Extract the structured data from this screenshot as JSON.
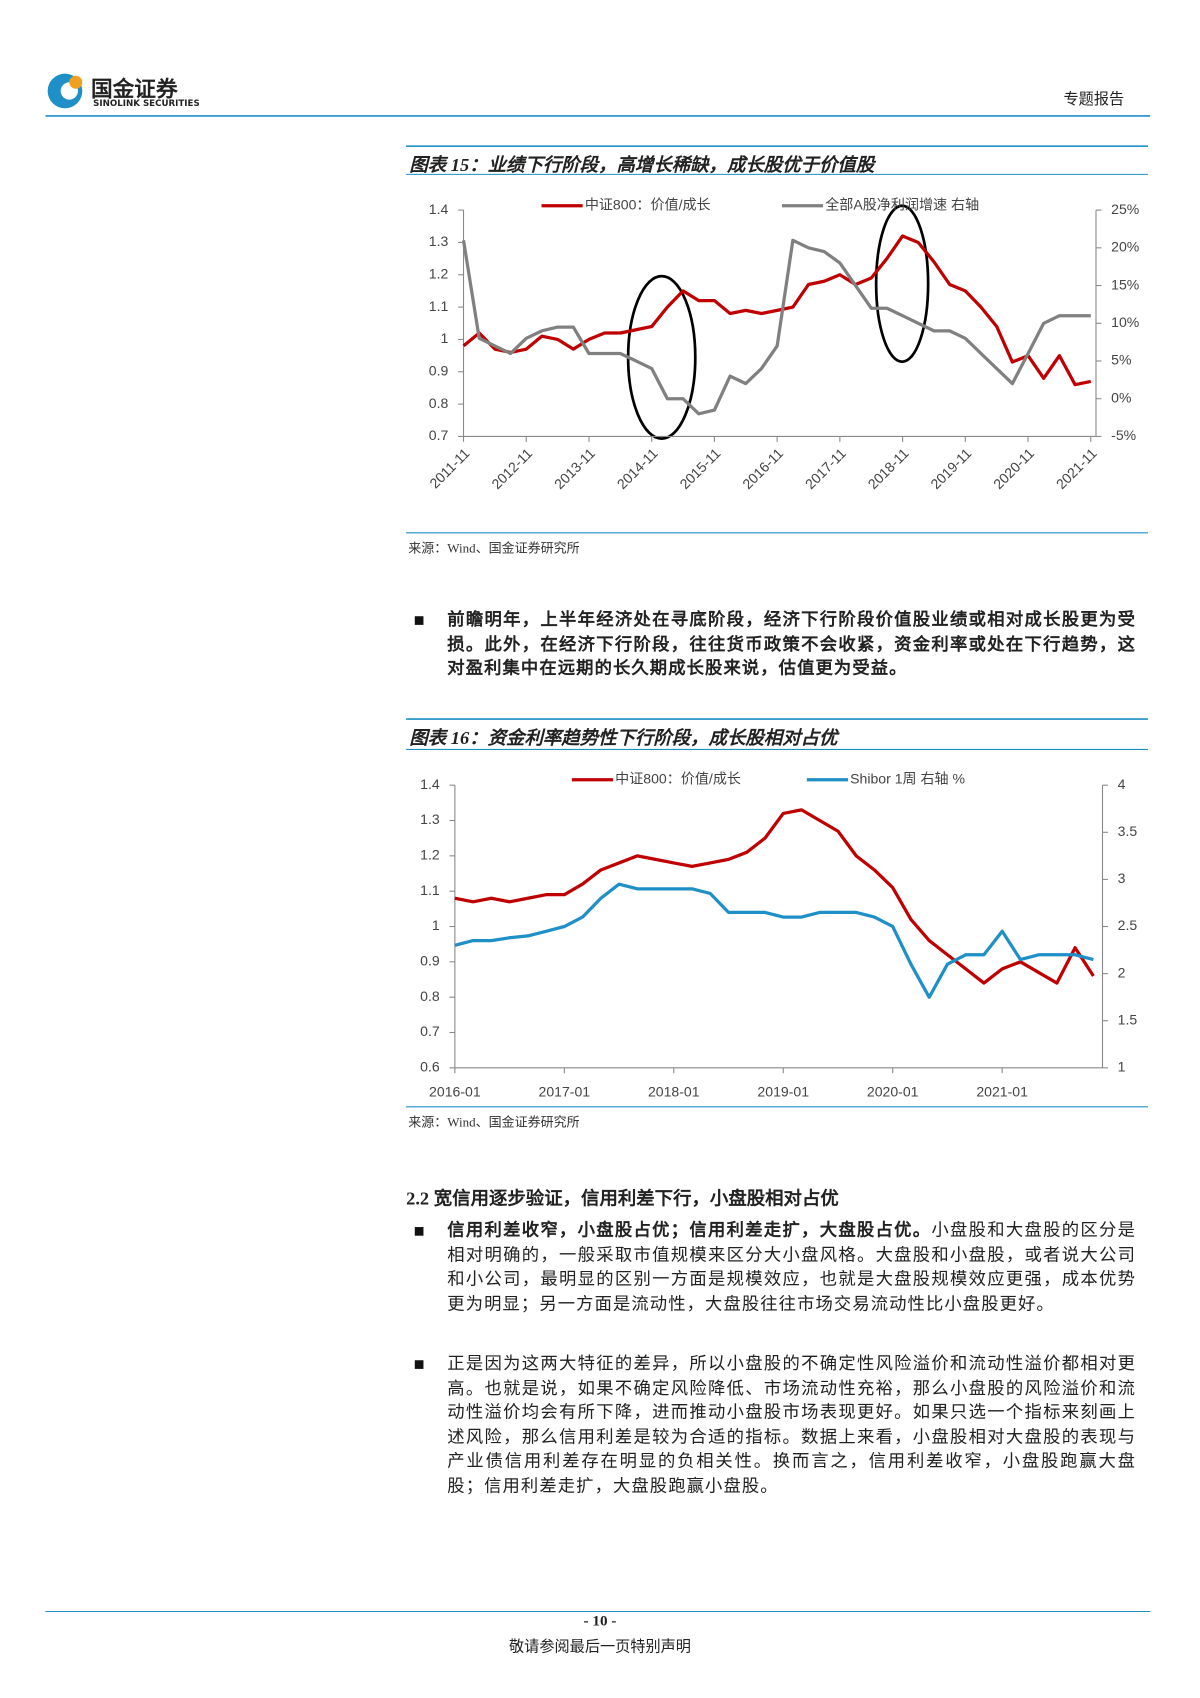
{
  "header": {
    "logo_cn": "国金证券",
    "logo_en": "SINOLINK SECURITIES",
    "report_type": "专题报告"
  },
  "chart_data": [
    {
      "type": "line",
      "title": "图表 15：业绩下行阶段，高增长稀缺，成长股优于价值股",
      "source": "来源：Wind、国金证券研究所",
      "x": [
        "2011-11",
        "2012-02",
        "2012-05",
        "2012-08",
        "2012-11",
        "2013-02",
        "2013-05",
        "2013-08",
        "2013-11",
        "2014-02",
        "2014-05",
        "2014-08",
        "2014-11",
        "2015-02",
        "2015-05",
        "2015-08",
        "2015-11",
        "2016-02",
        "2016-05",
        "2016-08",
        "2016-11",
        "2017-02",
        "2017-05",
        "2017-08",
        "2017-11",
        "2018-02",
        "2018-05",
        "2018-08",
        "2018-11",
        "2019-02",
        "2019-05",
        "2019-08",
        "2019-11",
        "2020-02",
        "2020-05",
        "2020-08",
        "2020-11",
        "2021-02",
        "2021-05",
        "2021-08",
        "2021-11"
      ],
      "xlim": [
        "2011-11",
        "2021-12"
      ],
      "xticks": [
        "2011-11",
        "2012-11",
        "2013-11",
        "2014-11",
        "2015-11",
        "2016-11",
        "2017-11",
        "2018-11",
        "2019-11",
        "2020-11",
        "2021-11"
      ],
      "ylim": [
        0.7,
        1.4
      ],
      "yticks": [
        0.7,
        0.8,
        0.9,
        1,
        1.1,
        1.2,
        1.3,
        1.4
      ],
      "y2lim": [
        -5,
        25
      ],
      "y2ticks": [
        {
          "value": -5,
          "label": "-5%"
        },
        {
          "value": 0,
          "label": "0%"
        },
        {
          "value": 5,
          "label": "5%"
        },
        {
          "value": 10,
          "label": "10%"
        },
        {
          "value": 15,
          "label": "15%"
        },
        {
          "value": 20,
          "label": "20%"
        },
        {
          "value": 25,
          "label": "25%"
        }
      ],
      "series": [
        {
          "name": "中证800：价值/成长",
          "color": "#c00000",
          "values": [
            0.98,
            1.02,
            0.97,
            0.96,
            0.97,
            1.01,
            1.0,
            0.97,
            1.0,
            1.02,
            1.02,
            1.03,
            1.04,
            1.1,
            1.15,
            1.12,
            1.12,
            1.08,
            1.09,
            1.08,
            1.09,
            1.1,
            1.17,
            1.18,
            1.2,
            1.17,
            1.19,
            1.25,
            1.32,
            1.3,
            1.24,
            1.17,
            1.15,
            1.1,
            1.04,
            0.93,
            0.95,
            0.88,
            0.95,
            0.86,
            0.87
          ]
        },
        {
          "name": "全部A股净利润增速 右轴",
          "color": "#808080",
          "axis": "y2",
          "values": [
            21,
            8,
            7,
            6,
            8,
            9,
            9.5,
            9.5,
            6,
            6,
            6,
            5,
            4,
            0,
            0,
            -2,
            -1.5,
            3,
            2,
            4,
            7,
            21,
            20,
            19.5,
            18,
            15,
            12,
            12,
            11,
            10,
            9,
            9,
            8,
            6,
            4,
            2,
            6,
            10,
            11,
            11,
            11
          ]
        }
      ]
    },
    {
      "type": "line",
      "title": "图表 16：资金利率趋势性下行阶段，成长股相对占优",
      "source": "来源：Wind、国金证券研究所",
      "x": [
        "2016-01",
        "2016-03",
        "2016-05",
        "2016-07",
        "2016-09",
        "2016-11",
        "2017-01",
        "2017-03",
        "2017-05",
        "2017-07",
        "2017-09",
        "2017-11",
        "2018-01",
        "2018-03",
        "2018-05",
        "2018-07",
        "2018-09",
        "2018-11",
        "2019-01",
        "2019-03",
        "2019-05",
        "2019-07",
        "2019-09",
        "2019-11",
        "2020-01",
        "2020-03",
        "2020-05",
        "2020-07",
        "2020-09",
        "2020-11",
        "2021-01",
        "2021-03",
        "2021-05",
        "2021-07",
        "2021-09",
        "2021-11"
      ],
      "xlim": [
        "2016-01",
        "2021-12"
      ],
      "xticks": [
        "2016-01",
        "2017-01",
        "2018-01",
        "2019-01",
        "2020-01",
        "2021-01"
      ],
      "ylim": [
        0.6,
        1.4
      ],
      "yticks": [
        0.6,
        0.7,
        0.8,
        0.9,
        1,
        1.1,
        1.2,
        1.3,
        1.4
      ],
      "y2lim": [
        1,
        4
      ],
      "y2ticks": [
        1,
        1.5,
        2,
        2.5,
        3,
        3.5,
        4
      ],
      "series": [
        {
          "name": "中证800：价值/成长",
          "color": "#c00000",
          "values": [
            1.08,
            1.07,
            1.08,
            1.07,
            1.08,
            1.09,
            1.09,
            1.12,
            1.16,
            1.18,
            1.2,
            1.19,
            1.18,
            1.17,
            1.18,
            1.19,
            1.21,
            1.25,
            1.32,
            1.33,
            1.3,
            1.27,
            1.2,
            1.16,
            1.11,
            1.02,
            0.96,
            0.92,
            0.88,
            0.84,
            0.88,
            0.9,
            0.87,
            0.84,
            0.94,
            0.86
          ]
        },
        {
          "name": "Shibor 1周 右轴 %",
          "color": "#1f8fc7",
          "axis": "y2",
          "values": [
            2.3,
            2.35,
            2.35,
            2.38,
            2.4,
            2.45,
            2.5,
            2.6,
            2.8,
            2.95,
            2.9,
            2.9,
            2.9,
            2.9,
            2.85,
            2.65,
            2.65,
            2.65,
            2.6,
            2.6,
            2.65,
            2.65,
            2.65,
            2.6,
            2.5,
            2.1,
            1.75,
            2.1,
            2.2,
            2.2,
            2.45,
            2.15,
            2.2,
            2.2,
            2.2,
            2.15
          ]
        }
      ]
    }
  ],
  "paragraphs": [
    {
      "bold": "前瞻明年，上半年经济处在寻底阶段，经济下行阶段价值股业绩或相对成长股更为受损。此外，在经济下行阶段，往往货币政策不会收紧，资金利率或处在下行趋势，这对盈利集中在远期的长久期成长股来说，估值更为受益。"
    },
    {
      "bold": "信用利差收窄，小盘股占优；信用利差走扩，大盘股占优。",
      "text": "小盘股和大盘股的区分是相对明确的，一般采取市值规模来区分大小盘风格。大盘股和小盘股，或者说大公司和小公司，最明显的区别一方面是规模效应，也就是大盘股规模效应更强，成本优势更为明显；另一方面是流动性，大盘股往往市场交易流动性比小盘股更好。"
    },
    {
      "text": "正是因为这两大特征的差异，所以小盘股的不确定性风险溢价和流动性溢价都相对更高。也就是说，如果不确定风险降低、市场流动性充裕，那么小盘股的风险溢价和流动性溢价均会有所下降，进而推动小盘股市场表现更好。如果只选一个指标来刻画上述风险，那么信用利差是较为合适的指标。数据上来看，小盘股相对大盘股的表现与产业债信用利差存在明显的负相关性。换而言之，信用利差收窄，小盘股跑赢大盘股；信用利差走扩，大盘股跑赢小盘股。"
    }
  ],
  "section_title": "2.2 宽信用逐步验证，信用利差下行，小盘股相对占优",
  "footer": {
    "page": "- 10 -",
    "disclaimer": "敬请参阅最后一页特别声明"
  }
}
